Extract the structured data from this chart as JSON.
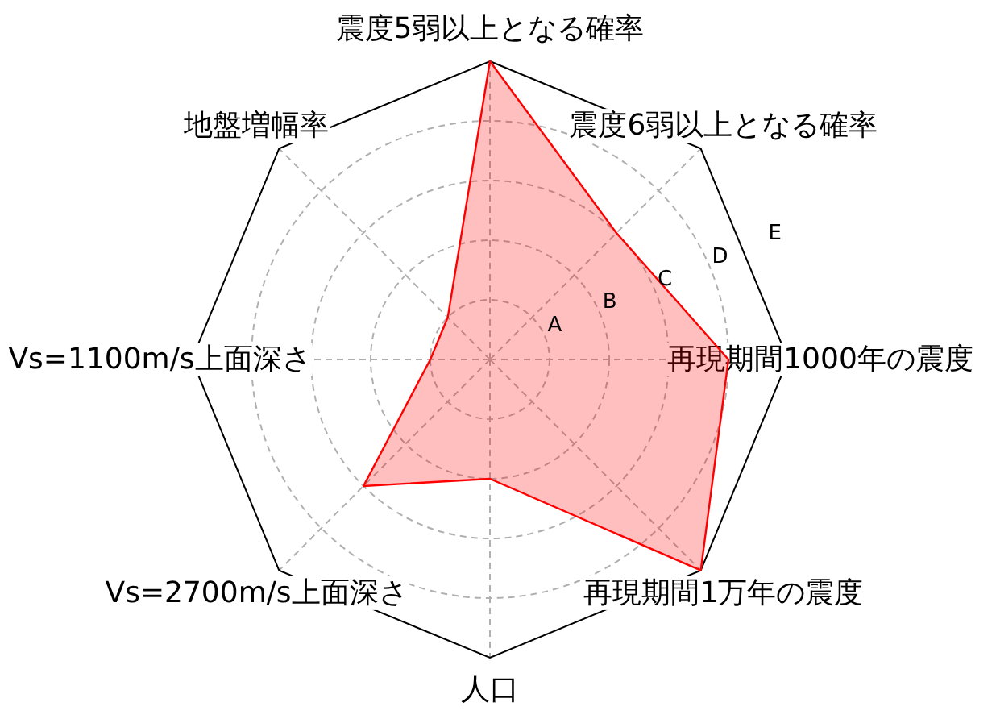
{
  "chart_data": {
    "type": "radar",
    "categories": [
      "震度5弱以上となる確率",
      "震度6弱以上となる確率",
      "再現期間1000年の震度",
      "再現期間1万年の震度",
      "人口",
      "Vs=2700m/s上面深さ",
      "Vs=1100m/s上面深さ",
      "地盤増幅率"
    ],
    "series": [
      {
        "color": "#ff0000",
        "values": [
          5,
          3,
          4,
          5,
          2,
          3,
          1,
          1
        ]
      }
    ],
    "ylim": [
      0,
      5
    ],
    "yticks": [
      {
        "value": 1,
        "label": "A"
      },
      {
        "value": 2,
        "label": "B"
      },
      {
        "value": 3,
        "label": "C"
      },
      {
        "value": 4,
        "label": "D"
      },
      {
        "value": 5,
        "label": "E"
      }
    ],
    "grid": true
  }
}
